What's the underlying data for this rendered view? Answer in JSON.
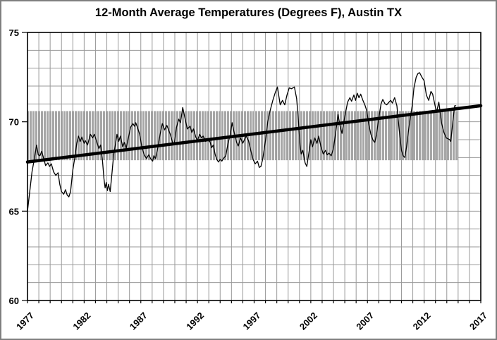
{
  "chart_data": {
    "type": "line",
    "title": "12-Month Average Temperatures (Degrees F), Austin TX",
    "xlabel": "",
    "ylabel": "",
    "grid": "on",
    "legend": "none",
    "colors": {
      "background": "#ffffff",
      "outer_border": "#7f7f7f",
      "grid": "#999999",
      "band": "#a6a6a6",
      "series": "#000000",
      "trend": "#000000",
      "frame": "#000000"
    },
    "x_axis": {
      "min": 1977,
      "max": 2017,
      "minor_step": 1,
      "ticks": [
        1977,
        1982,
        1987,
        1992,
        1997,
        2002,
        2007,
        2012,
        2017
      ],
      "tick_labels": [
        "1977",
        "1982",
        "1987",
        "1992",
        "1997",
        "2002",
        "2007",
        "2012",
        "2017"
      ],
      "label_rotation_deg": -45
    },
    "y_axis": {
      "min": 60,
      "max": 75,
      "minor_step": 1,
      "ticks": [
        60,
        65,
        70,
        75
      ],
      "tick_labels": [
        "60",
        "65",
        "70",
        "75"
      ]
    },
    "shaded_band": {
      "meaning": "typical-range band drawn as dense vertical gray stripes",
      "low": 67.85,
      "high": 70.6,
      "x_start": 1977.0,
      "x_end": 2015.0
    },
    "trend_line": {
      "x_start": 1977,
      "y_start": 67.75,
      "x_end": 2017,
      "y_end": 70.9
    },
    "series": [
      {
        "name": "12-month average temperature",
        "x": [
          1977.0,
          1977.2,
          1977.4,
          1977.6,
          1977.8,
          1977.95,
          1978.1,
          1978.25,
          1978.45,
          1978.6,
          1978.8,
          1978.95,
          1979.1,
          1979.3,
          1979.5,
          1979.7,
          1979.85,
          1980.0,
          1980.2,
          1980.35,
          1980.5,
          1980.65,
          1980.8,
          1981.0,
          1981.2,
          1981.35,
          1981.5,
          1981.65,
          1981.8,
          1982.0,
          1982.1,
          1982.3,
          1982.55,
          1982.75,
          1982.9,
          1983.1,
          1983.3,
          1983.45,
          1983.6,
          1983.75,
          1983.85,
          1983.95,
          1984.05,
          1984.15,
          1984.3,
          1984.45,
          1984.6,
          1984.75,
          1984.9,
          1985.05,
          1985.2,
          1985.4,
          1985.55,
          1985.7,
          1985.9,
          1986.1,
          1986.3,
          1986.45,
          1986.55,
          1986.7,
          1986.9,
          1987.1,
          1987.3,
          1987.5,
          1987.7,
          1987.9,
          1988.05,
          1988.15,
          1988.3,
          1988.5,
          1988.7,
          1988.9,
          1989.1,
          1989.3,
          1989.6,
          1989.8,
          1989.95,
          1990.15,
          1990.35,
          1990.5,
          1990.7,
          1990.9,
          1991.1,
          1991.35,
          1991.5,
          1991.65,
          1991.85,
          1992.0,
          1992.2,
          1992.35,
          1992.5,
          1992.7,
          1992.9,
          1993.1,
          1993.25,
          1993.4,
          1993.55,
          1993.7,
          1993.85,
          1994.0,
          1994.15,
          1994.3,
          1994.5,
          1994.7,
          1994.9,
          1995.05,
          1995.2,
          1995.45,
          1995.6,
          1995.8,
          1996.0,
          1996.3,
          1996.5,
          1996.7,
          1996.9,
          1997.1,
          1997.3,
          1997.45,
          1997.6,
          1997.75,
          1998.0,
          1998.2,
          1998.4,
          1998.65,
          1998.85,
          1999.05,
          1999.3,
          1999.5,
          1999.7,
          1999.9,
          2000.1,
          2000.3,
          2000.55,
          2000.75,
          2000.9,
          2001.05,
          2001.15,
          2001.3,
          2001.5,
          2001.65,
          2001.85,
          2002.0,
          2002.15,
          2002.35,
          2002.55,
          2002.7,
          2002.9,
          2003.1,
          2003.3,
          2003.45,
          2003.6,
          2003.8,
          2004.0,
          2004.2,
          2004.4,
          2004.6,
          2004.75,
          2005.0,
          2005.25,
          2005.45,
          2005.6,
          2005.8,
          2005.95,
          2006.1,
          2006.25,
          2006.4,
          2006.6,
          2006.8,
          2006.95,
          2007.1,
          2007.3,
          2007.5,
          2007.65,
          2007.8,
          2008.0,
          2008.2,
          2008.35,
          2008.55,
          2008.7,
          2008.9,
          2009.05,
          2009.2,
          2009.4,
          2009.6,
          2009.8,
          2010.0,
          2010.15,
          2010.3,
          2010.45,
          2010.6,
          2010.8,
          2010.95,
          2011.1,
          2011.3,
          2011.45,
          2011.6,
          2011.8,
          2012.0,
          2012.2,
          2012.4,
          2012.6,
          2012.75,
          2013.0,
          2013.1,
          2013.3,
          2013.55,
          2013.75,
          2013.95,
          2014.1,
          2014.25,
          2014.35,
          2014.55,
          2014.7,
          2014.8
        ],
        "y": [
          65.0,
          66.1,
          67.2,
          67.9,
          68.7,
          68.15,
          68.1,
          68.35,
          67.9,
          67.55,
          67.7,
          67.5,
          67.65,
          67.2,
          67.0,
          67.15,
          66.5,
          66.1,
          65.95,
          66.2,
          65.9,
          65.8,
          66.1,
          67.3,
          68.1,
          68.8,
          69.2,
          68.9,
          69.15,
          68.8,
          68.95,
          68.7,
          69.3,
          69.1,
          69.3,
          68.9,
          68.5,
          68.7,
          67.95,
          66.8,
          66.3,
          66.6,
          66.15,
          66.5,
          66.1,
          67.1,
          68.15,
          68.7,
          69.3,
          68.9,
          69.2,
          68.6,
          68.85,
          68.5,
          69.1,
          69.7,
          69.9,
          69.75,
          69.95,
          69.7,
          69.3,
          68.55,
          68.15,
          67.95,
          68.15,
          67.9,
          67.8,
          68.1,
          67.95,
          68.55,
          69.3,
          69.9,
          69.55,
          69.8,
          69.3,
          68.85,
          68.75,
          69.7,
          70.15,
          69.95,
          70.8,
          70.2,
          69.6,
          69.75,
          69.4,
          69.6,
          69.15,
          68.95,
          69.3,
          69.1,
          69.2,
          68.9,
          68.95,
          68.9,
          68.55,
          68.7,
          68.2,
          67.9,
          67.75,
          67.9,
          67.8,
          67.95,
          68.1,
          68.8,
          69.3,
          69.95,
          69.5,
          68.85,
          68.65,
          69.1,
          68.8,
          69.2,
          68.95,
          68.4,
          67.9,
          67.65,
          67.8,
          67.45,
          67.5,
          67.9,
          68.95,
          70.0,
          70.6,
          71.2,
          71.6,
          71.95,
          70.95,
          71.2,
          70.95,
          71.5,
          71.9,
          71.85,
          71.95,
          71.3,
          70.1,
          68.7,
          68.2,
          68.4,
          67.7,
          67.5,
          68.35,
          69.0,
          68.6,
          69.1,
          68.8,
          69.2,
          68.6,
          68.2,
          68.4,
          68.15,
          68.25,
          68.1,
          68.5,
          69.4,
          70.4,
          69.7,
          69.35,
          70.3,
          71.1,
          71.35,
          71.15,
          71.5,
          71.2,
          71.6,
          71.35,
          71.55,
          71.2,
          70.9,
          70.6,
          69.9,
          69.3,
          68.95,
          68.85,
          69.3,
          70.2,
          71.0,
          71.25,
          71.0,
          70.95,
          71.1,
          71.2,
          71.05,
          71.35,
          70.9,
          69.55,
          68.4,
          68.1,
          68.0,
          68.6,
          69.4,
          70.3,
          70.9,
          71.9,
          72.5,
          72.7,
          72.75,
          72.5,
          72.3,
          71.5,
          71.2,
          71.7,
          71.55,
          70.8,
          70.55,
          71.1,
          69.9,
          69.4,
          69.1,
          69.05,
          69.0,
          68.9,
          70.1,
          70.9,
          70.9
        ]
      }
    ]
  }
}
